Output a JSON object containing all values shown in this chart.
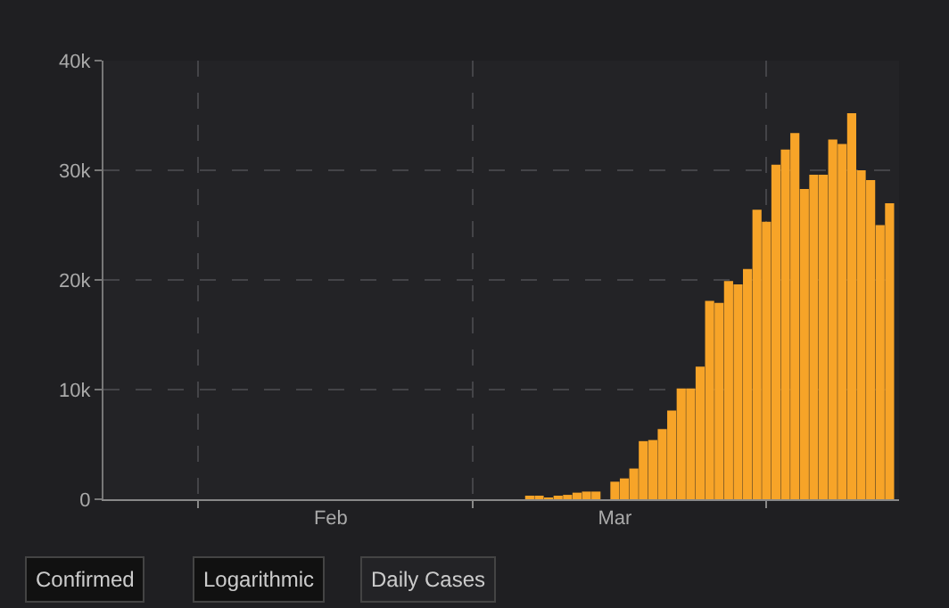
{
  "chart_data": {
    "type": "bar",
    "color": "#f7a428",
    "x": [
      "--01-22",
      "--01-23",
      "--01-24",
      "--01-25",
      "--01-26",
      "--01-27",
      "--01-28",
      "--01-29",
      "--01-30",
      "--01-31",
      "--02-01",
      "--02-02",
      "--02-03",
      "--02-04",
      "--02-05",
      "--02-06",
      "--02-07",
      "--02-08",
      "--02-09",
      "--02-10",
      "--02-11",
      "--02-12",
      "--02-13",
      "--02-14",
      "--02-15",
      "--02-16",
      "--02-17",
      "--02-18",
      "--02-19",
      "--02-20",
      "--02-21",
      "--02-22",
      "--02-23",
      "--02-24",
      "--02-25",
      "--02-26",
      "--02-27",
      "--02-28",
      "--02-29",
      "--03-01",
      "--03-02",
      "--03-03",
      "--03-04",
      "--03-05",
      "--03-06",
      "--03-07",
      "--03-08",
      "--03-09",
      "--03-10",
      "--03-11",
      "--03-12",
      "--03-13",
      "--03-14",
      "--03-15",
      "--03-16",
      "--03-17",
      "--03-18",
      "--03-19",
      "--03-20",
      "--03-21",
      "--03-22",
      "--03-23",
      "--03-24",
      "--03-25",
      "--03-26",
      "--03-27",
      "--03-28",
      "--03-29",
      "--03-30",
      "--03-31",
      "--04-01",
      "--04-02",
      "--04-03",
      "--04-04",
      "--04-05",
      "--04-06",
      "--04-07",
      "--04-08",
      "--04-09",
      "--04-10",
      "--04-11",
      "--04-12",
      "--04-13",
      "--04-14"
    ],
    "values": [
      0,
      0,
      0,
      0,
      0,
      0,
      0,
      0,
      0,
      0,
      0,
      0,
      0,
      0,
      0,
      0,
      0,
      0,
      0,
      0,
      0,
      0,
      0,
      0,
      0,
      0,
      0,
      0,
      0,
      0,
      0,
      0,
      0,
      0,
      0,
      0,
      0,
      0,
      0,
      0,
      0,
      0,
      0,
      0,
      0,
      300,
      300,
      100,
      300,
      400,
      600,
      700,
      700,
      0,
      1600,
      1900,
      2800,
      5300,
      5400,
      6400,
      8100,
      10100,
      10100,
      12100,
      18100,
      17900,
      19900,
      19600,
      21000,
      26400,
      25300,
      30500,
      31900,
      33400,
      28300,
      29600,
      29600,
      32800,
      32400,
      35200,
      30000,
      29100,
      25000,
      27000
    ],
    "xlim": [
      "--01-22",
      "--04-15"
    ],
    "xticks": [
      {
        "value": "--02-01",
        "label": null
      },
      {
        "value": "--02-15",
        "label": "Feb"
      },
      {
        "value": "--03-01",
        "label": null
      },
      {
        "value": "--03-16",
        "label": "Mar"
      },
      {
        "value": "--04-01",
        "label": null
      }
    ],
    "ylim": [
      0,
      40000
    ],
    "yticks": [
      0,
      {
        "value": 10000,
        "label": "10k"
      },
      {
        "value": 20000,
        "label": "20k"
      },
      {
        "value": 30000,
        "label": "30k"
      },
      {
        "value": 40000,
        "label": "40k"
      }
    ],
    "grid": true,
    "annotations": [
      "Confirmed",
      "Logarithmic",
      "Daily Cases"
    ]
  }
}
